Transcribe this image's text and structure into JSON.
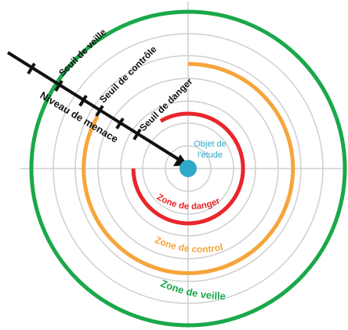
{
  "diagram": {
    "subject": {
      "line1": "Objet de",
      "line2": "l'étude",
      "color": "#2fa8c9"
    },
    "zones": [
      {
        "id": "veille",
        "label": "Zone de veille",
        "color": "#1aa84a"
      },
      {
        "id": "control",
        "label": "Zone de control",
        "color": "#f6a53b"
      },
      {
        "id": "danger",
        "label": "Zone de danger",
        "color": "#e8262b"
      }
    ],
    "thresholds": [
      {
        "id": "veille",
        "label": "Seuil de veille"
      },
      {
        "id": "controle",
        "label": "Seuil de contrôle"
      },
      {
        "id": "danger",
        "label": "Seuil de danger"
      }
    ],
    "arrow": {
      "label": "Niveau de menace",
      "color": "#111111"
    },
    "grid_color": "#cfcfcf"
  }
}
